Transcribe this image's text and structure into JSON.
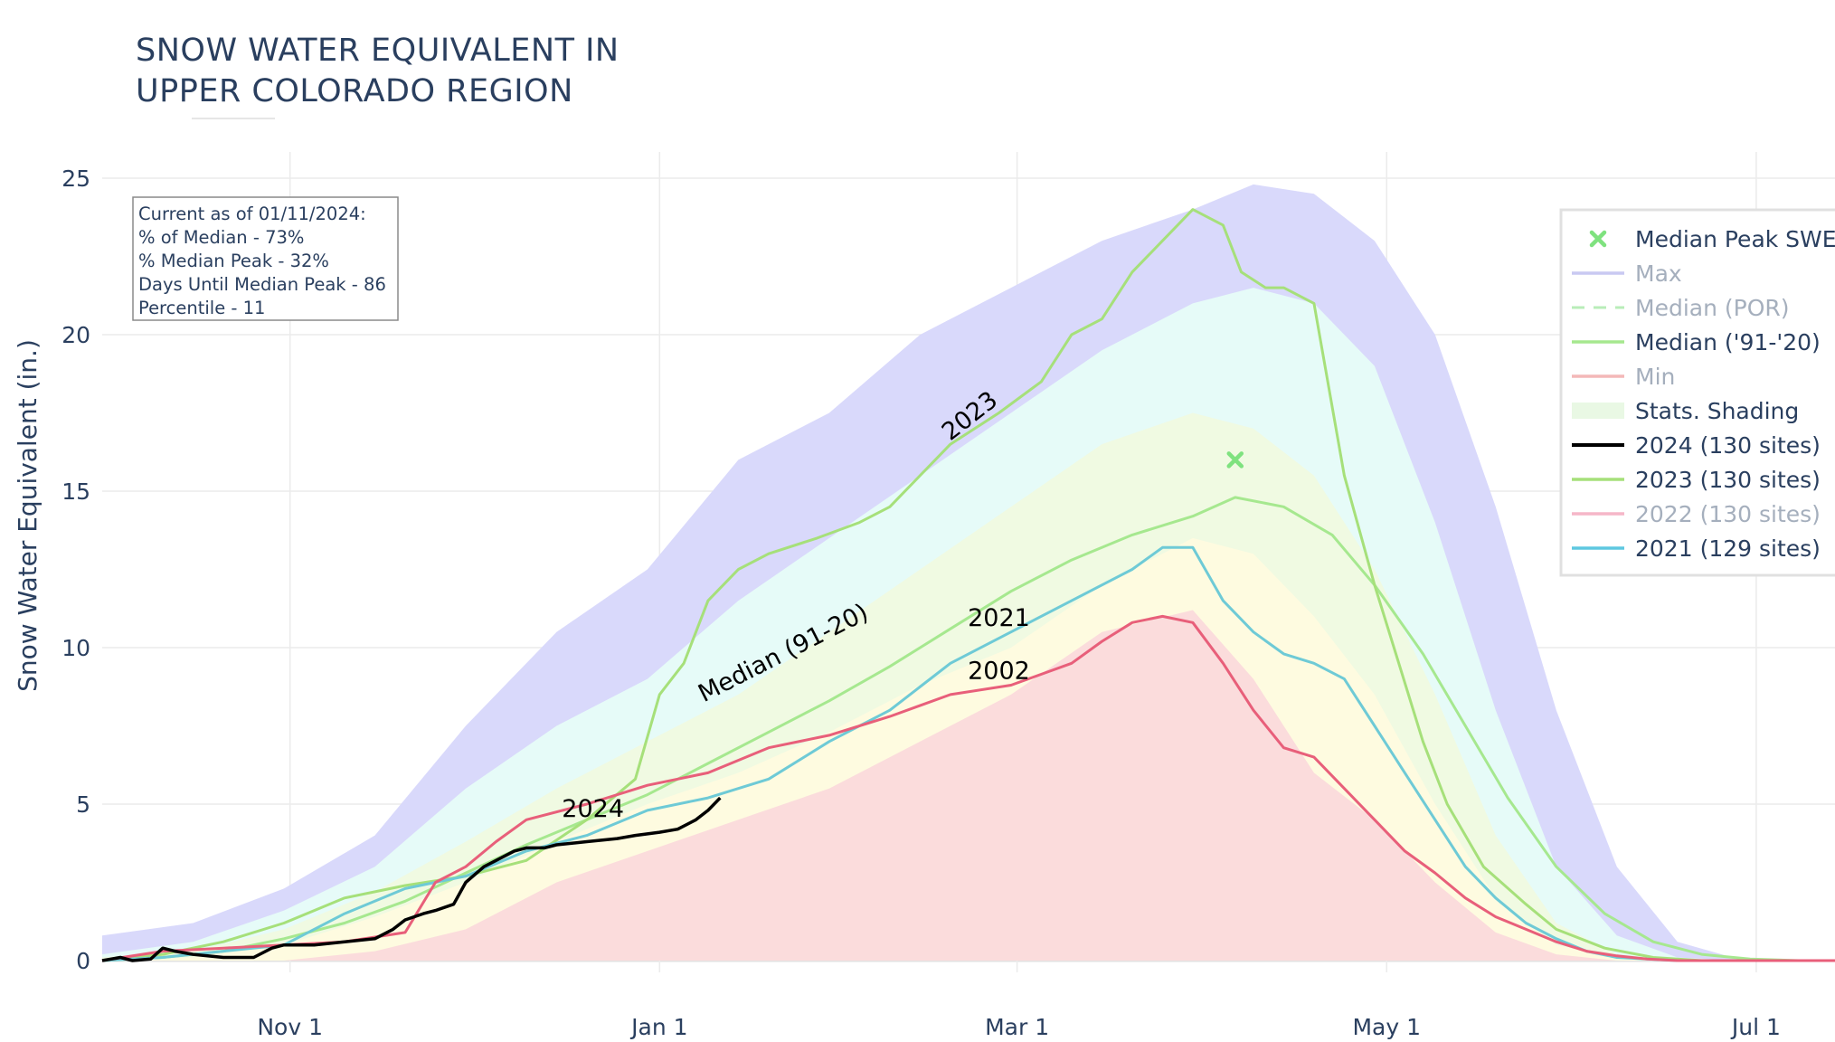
{
  "page": {
    "title_line1": "SNOW WATER EQUIVALENT IN",
    "title_line2": "UPPER COLORADO REGION"
  },
  "info_box": {
    "line1": "Current as of 01/11/2024:",
    "line2": "% of Median - 73%",
    "line3": "% Median Peak - 32%",
    "line4": "Days Until Median Peak - 86",
    "line5": "Percentile - 11"
  },
  "legend": {
    "items": [
      {
        "label": "Median Peak SWE",
        "color": "#7fe27f",
        "kind": "x",
        "muted": false
      },
      {
        "label": "Max",
        "color": "#c9c9f2",
        "kind": "line",
        "muted": true
      },
      {
        "label": "Median (POR)",
        "color": "#b8edb8",
        "kind": "dash",
        "muted": true
      },
      {
        "label": "Median ('91-'20)",
        "color": "#a6e88f",
        "kind": "line",
        "muted": false
      },
      {
        "label": "Min",
        "color": "#f4b8b8",
        "kind": "line",
        "muted": true
      },
      {
        "label": "Stats. Shading",
        "color": "#e9f8e4",
        "kind": "block",
        "muted": false
      },
      {
        "label": "2024 (130 sites)",
        "color": "#000000",
        "kind": "line",
        "muted": false
      },
      {
        "label": "2023 (130 sites)",
        "color": "#a6e07a",
        "kind": "line",
        "muted": false
      },
      {
        "label": "2022 (130 sites)",
        "color": "#f5b6c8",
        "kind": "line",
        "muted": true
      },
      {
        "label": "2021 (129 sites)",
        "color": "#5ec8e0",
        "kind": "line",
        "muted": false
      }
    ]
  },
  "colors": {
    "max_band": "#d9d9fb",
    "pct90_band": "#e6fbf8",
    "pct70_band": "#f0fae2",
    "pct30_band": "#fefbe0",
    "min_band": "#fbdcdc",
    "median_line": "#a6e88f",
    "y2024": "#000000",
    "y2023": "#a6e07a",
    "y2021": "#6ecad6",
    "y2002": "#e85f7a",
    "grid": "#ebebeb",
    "axis_text": "#2a3f5f"
  },
  "chart_data": {
    "type": "area",
    "title": "SNOW WATER EQUIVALENT IN UPPER COLORADO REGION",
    "xlabel": "",
    "ylabel": "Snow Water Equivalent (in.)",
    "x_unit": "days since Oct 1",
    "xlim": [
      0,
      286
    ],
    "ylim": [
      -1,
      26
    ],
    "x_ticks": [
      {
        "x": 31,
        "label": "Nov  1"
      },
      {
        "x": 92,
        "label": "Jan  1"
      },
      {
        "x": 151,
        "label": "Mar  1"
      },
      {
        "x": 212,
        "label": "May  1"
      },
      {
        "x": 273,
        "label": "Jul  1"
      }
    ],
    "y_ticks": [
      0,
      5,
      10,
      15,
      20,
      25
    ],
    "median_peak": {
      "x": 187,
      "y": 16.0,
      "label": "Median Peak SWE"
    },
    "bands": {
      "x": [
        0,
        15,
        30,
        45,
        60,
        75,
        90,
        105,
        120,
        135,
        150,
        165,
        180,
        190,
        200,
        210,
        220,
        230,
        240,
        250,
        260,
        270,
        280,
        286
      ],
      "max": [
        0.8,
        1.2,
        2.3,
        4.0,
        7.5,
        10.5,
        12.5,
        16.0,
        17.5,
        20.0,
        21.5,
        23.0,
        24.0,
        24.8,
        24.5,
        23.0,
        20.0,
        14.5,
        8.0,
        3.0,
        0.6,
        0.05,
        0,
        0
      ],
      "p90": [
        0.2,
        0.6,
        1.6,
        3.0,
        5.5,
        7.5,
        9.0,
        11.5,
        13.5,
        15.5,
        17.5,
        19.5,
        21.0,
        21.5,
        21.0,
        19.0,
        14.0,
        8.0,
        3.0,
        0.8,
        0.1,
        0,
        0,
        0
      ],
      "p70": [
        0.1,
        0.3,
        1.0,
        2.2,
        3.8,
        5.5,
        7.0,
        8.5,
        10.5,
        12.5,
        14.5,
        16.5,
        17.5,
        17.0,
        15.5,
        12.5,
        8.5,
        4.0,
        1.2,
        0.2,
        0,
        0,
        0,
        0
      ],
      "p30": [
        0.0,
        0.1,
        0.5,
        1.4,
        2.5,
        3.8,
        5.0,
        6.0,
        7.3,
        8.8,
        10.0,
        12.0,
        13.5,
        13.0,
        11.0,
        8.5,
        5.0,
        2.0,
        0.5,
        0.1,
        0,
        0,
        0,
        0
      ],
      "min": [
        0,
        0,
        0,
        0.3,
        1.0,
        2.5,
        3.5,
        4.5,
        5.5,
        7.0,
        8.5,
        10.5,
        11.2,
        9.0,
        6.0,
        4.5,
        2.5,
        0.9,
        0.2,
        0,
        0,
        0,
        0,
        0
      ]
    },
    "series": [
      {
        "name": "Median ('91-'20)",
        "label": "Median (91-20)",
        "x": [
          0,
          10,
          20,
          30,
          40,
          50,
          60,
          70,
          80,
          90,
          100,
          110,
          120,
          130,
          140,
          150,
          160,
          170,
          180,
          187,
          195,
          203,
          210,
          218,
          225,
          232,
          240,
          248,
          256,
          264,
          272,
          280,
          286
        ],
        "values": [
          0.0,
          0.1,
          0.3,
          0.7,
          1.2,
          1.9,
          2.8,
          3.7,
          4.5,
          5.3,
          6.3,
          7.3,
          8.3,
          9.4,
          10.6,
          11.8,
          12.8,
          13.6,
          14.2,
          14.8,
          14.5,
          13.6,
          12.0,
          9.8,
          7.5,
          5.2,
          3.0,
          1.5,
          0.6,
          0.2,
          0.05,
          0,
          0
        ]
      },
      {
        "name": "2023",
        "label": "2023",
        "x": [
          0,
          10,
          20,
          30,
          40,
          50,
          60,
          70,
          80,
          88,
          92,
          96,
          100,
          105,
          110,
          118,
          125,
          130,
          140,
          148,
          155,
          160,
          165,
          170,
          175,
          180,
          185,
          188,
          192,
          195,
          200,
          205,
          210,
          214,
          218,
          222,
          228,
          235,
          240,
          248,
          256,
          264,
          272,
          286
        ],
        "values": [
          0.0,
          0.2,
          0.6,
          1.2,
          2.0,
          2.4,
          2.7,
          3.2,
          4.5,
          5.8,
          8.5,
          9.5,
          11.5,
          12.5,
          13.0,
          13.5,
          14.0,
          14.5,
          16.5,
          17.5,
          18.5,
          20.0,
          20.5,
          22.0,
          23.0,
          24.0,
          23.5,
          22.0,
          21.5,
          21.5,
          21.0,
          15.5,
          12.0,
          9.5,
          7.0,
          5.0,
          3.0,
          1.8,
          1.0,
          0.4,
          0.1,
          0,
          0,
          0
        ]
      },
      {
        "name": "2021",
        "label": "2021",
        "x": [
          0,
          10,
          20,
          30,
          40,
          50,
          60,
          70,
          80,
          90,
          100,
          110,
          120,
          130,
          140,
          150,
          160,
          170,
          175,
          180,
          185,
          190,
          195,
          200,
          205,
          210,
          215,
          220,
          225,
          230,
          235,
          240,
          245,
          250,
          255,
          260,
          270,
          286
        ],
        "values": [
          0.0,
          0.1,
          0.3,
          0.5,
          1.5,
          2.3,
          2.7,
          3.5,
          4.0,
          4.8,
          5.2,
          5.8,
          7.0,
          8.0,
          9.5,
          10.5,
          11.5,
          12.5,
          13.2,
          13.2,
          11.5,
          10.5,
          9.8,
          9.5,
          9.0,
          7.5,
          6.0,
          4.5,
          3.0,
          2.0,
          1.2,
          0.7,
          0.3,
          0.1,
          0.05,
          0,
          0,
          0
        ]
      },
      {
        "name": "2002",
        "label": "2002",
        "x": [
          0,
          10,
          20,
          30,
          40,
          50,
          55,
          60,
          65,
          70,
          80,
          90,
          100,
          110,
          120,
          130,
          140,
          150,
          160,
          165,
          170,
          175,
          180,
          185,
          190,
          195,
          200,
          205,
          210,
          215,
          220,
          225,
          230,
          235,
          240,
          245,
          250,
          255,
          260,
          286
        ],
        "values": [
          0.0,
          0.3,
          0.4,
          0.5,
          0.6,
          0.9,
          2.5,
          3.0,
          3.8,
          4.5,
          5.0,
          5.6,
          6.0,
          6.8,
          7.2,
          7.8,
          8.5,
          8.8,
          9.5,
          10.2,
          10.8,
          11.0,
          10.8,
          9.5,
          8.0,
          6.8,
          6.5,
          5.5,
          4.5,
          3.5,
          2.8,
          2.0,
          1.4,
          1.0,
          0.6,
          0.3,
          0.15,
          0.05,
          0,
          0
        ]
      },
      {
        "name": "2024",
        "label": "2024",
        "x": [
          0,
          3,
          5,
          8,
          10,
          12,
          15,
          20,
          25,
          28,
          30,
          35,
          40,
          45,
          48,
          50,
          53,
          55,
          58,
          60,
          63,
          65,
          68,
          70,
          73,
          75,
          80,
          85,
          88,
          90,
          92,
          95,
          98,
          100,
          102
        ],
        "values": [
          0.0,
          0.1,
          0.0,
          0.05,
          0.4,
          0.3,
          0.2,
          0.1,
          0.1,
          0.4,
          0.5,
          0.5,
          0.6,
          0.7,
          1.0,
          1.3,
          1.5,
          1.6,
          1.8,
          2.5,
          3.0,
          3.2,
          3.5,
          3.6,
          3.6,
          3.7,
          3.8,
          3.9,
          4.0,
          4.05,
          4.1,
          4.2,
          4.5,
          4.8,
          5.2
        ]
      }
    ]
  }
}
